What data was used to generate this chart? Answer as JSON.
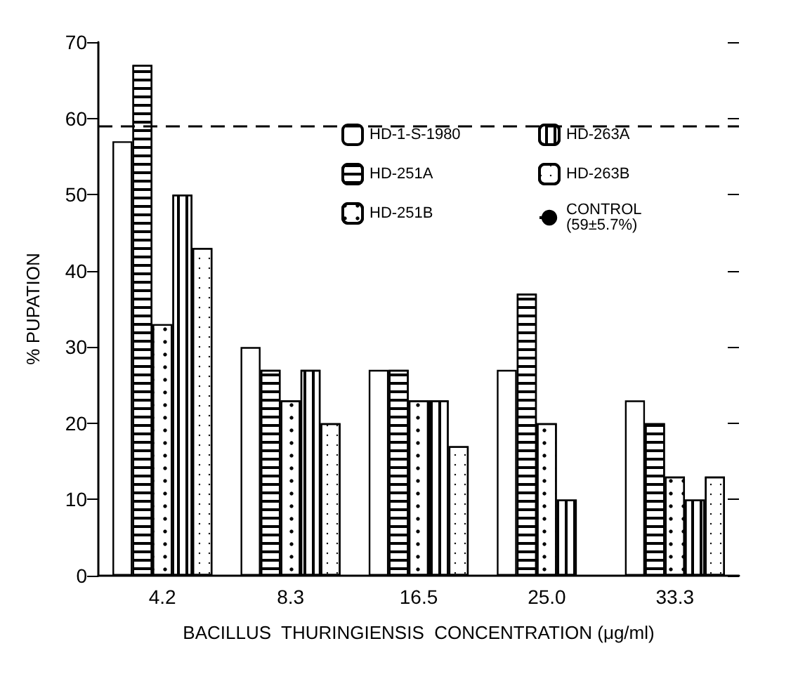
{
  "chart_data": {
    "type": "bar",
    "xlabel": "BACILLUS  THURINGIENSIS  CONCENTRATION (μg/ml)",
    "ylabel": "% PUPATION",
    "categories": [
      "4.2",
      "8.3",
      "16.5",
      "25.0",
      "33.3"
    ],
    "series": [
      {
        "name": "HD-1-S-1980",
        "color": "#ffffff",
        "values": [
          57,
          30,
          27,
          27,
          23
        ]
      },
      {
        "name": "HD-251A",
        "color": "#ffffff",
        "values": [
          67,
          27,
          27,
          37,
          20
        ]
      },
      {
        "name": "HD-251B",
        "color": "#ffffff",
        "values": [
          33,
          23,
          23,
          20,
          13
        ]
      },
      {
        "name": "HD-263A",
        "color": "#ffffff",
        "values": [
          50,
          27,
          23,
          10,
          10
        ]
      },
      {
        "name": "HD-263B",
        "color": "#ffffff",
        "values": [
          43,
          20,
          17,
          null,
          13
        ]
      }
    ],
    "ylim": [
      0,
      70
    ],
    "yticks": [
      0,
      10,
      20,
      30,
      40,
      50,
      60,
      70
    ],
    "grid": false,
    "legend": "top right",
    "ref_lines": [
      {
        "axis": "y",
        "value": 59,
        "label": "CONTROL\n(59±5.7%)",
        "color": "#000000",
        "line_style": "dashed"
      }
    ]
  }
}
